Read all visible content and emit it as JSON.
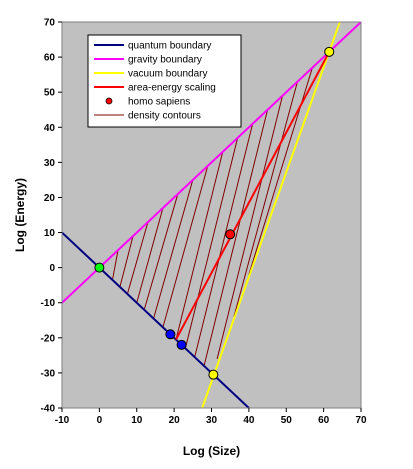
{
  "chart_data": {
    "type": "line",
    "xlabel": "Log (Size)",
    "ylabel": "Log (Energy)",
    "xlim": [
      -10,
      70
    ],
    "ylim": [
      -40,
      70
    ],
    "x_ticks": [
      -10,
      0,
      10,
      20,
      30,
      40,
      50,
      60,
      70
    ],
    "y_ticks": [
      -40,
      -30,
      -20,
      -10,
      0,
      10,
      20,
      30,
      40,
      50,
      60,
      70
    ],
    "grid": false,
    "plot_background": "#c0c0c0",
    "legend_position": "top-left",
    "series": [
      {
        "name": "quantum boundary",
        "kind": "line",
        "color": "#000080",
        "points": [
          [
            -10,
            10
          ],
          [
            42,
            -42
          ]
        ]
      },
      {
        "name": "gravity boundary",
        "kind": "line",
        "color": "#ff00ff",
        "points": [
          [
            -10,
            -10
          ],
          [
            70,
            70
          ]
        ]
      },
      {
        "name": "vacuum boundary",
        "kind": "line",
        "color": "#ffff00",
        "points": [
          [
            27.5,
            -40
          ],
          [
            65,
            72
          ]
        ]
      },
      {
        "name": "area-energy scaling",
        "kind": "line",
        "color": "#ff0000",
        "points": [
          [
            20.5,
            -20.5
          ],
          [
            61.5,
            61.5
          ]
        ]
      },
      {
        "name": "homo sapiens",
        "kind": "marker",
        "color": "#ff0000",
        "points": [
          [
            35,
            9.5
          ]
        ]
      },
      {
        "name": "density contours",
        "kind": "contours",
        "color": "#800000",
        "segments": [
          [
            [
              3.5,
              -3.5
            ],
            [
              5,
              5
            ]
          ],
          [
            [
              5.5,
              -5.5
            ],
            [
              9,
              9
            ]
          ],
          [
            [
              7.5,
              -7.5
            ],
            [
              13,
              13
            ]
          ],
          [
            [
              10,
              -10
            ],
            [
              17,
              17
            ]
          ],
          [
            [
              12,
              -12
            ],
            [
              21,
              21
            ]
          ],
          [
            [
              14.5,
              -14.5
            ],
            [
              25,
              25
            ]
          ],
          [
            [
              17,
              -17
            ],
            [
              29,
              29
            ]
          ],
          [
            [
              20.5,
              -20.5
            ],
            [
              33,
              33
            ]
          ],
          [
            [
              23,
              -23
            ],
            [
              37,
              37
            ]
          ],
          [
            [
              25.5,
              -25.5
            ],
            [
              41,
              41
            ]
          ],
          [
            [
              28,
              -28
            ],
            [
              45,
              45
            ]
          ],
          [
            [
              31.5,
              -26
            ],
            [
              49,
              49
            ]
          ],
          [
            [
              36,
              -14
            ],
            [
              53,
              53
            ]
          ],
          [
            [
              40,
              -2
            ],
            [
              57,
              57
            ]
          ]
        ]
      }
    ],
    "markers": [
      {
        "x": 0,
        "y": 0,
        "color": "#00ff00"
      },
      {
        "x": 19,
        "y": -19,
        "color": "#0000ff"
      },
      {
        "x": 22,
        "y": -22,
        "color": "#0000ff"
      },
      {
        "x": 30.5,
        "y": -30.5,
        "color": "#ffff00"
      },
      {
        "x": 35,
        "y": 9.5,
        "color": "#ff0000"
      },
      {
        "x": 61.5,
        "y": 61.5,
        "color": "#ffff00"
      }
    ],
    "legend": [
      {
        "label": "quantum boundary",
        "symbol": "line",
        "color": "#000080"
      },
      {
        "label": "gravity boundary",
        "symbol": "line",
        "color": "#ff00ff"
      },
      {
        "label": "vacuum boundary",
        "symbol": "line",
        "color": "#ffff00"
      },
      {
        "label": "area-energy scaling",
        "symbol": "line",
        "color": "#ff0000"
      },
      {
        "label": "homo sapiens",
        "symbol": "dot",
        "color": "#ff0000"
      },
      {
        "label": "density contours",
        "symbol": "thin-line",
        "color": "#800000"
      }
    ]
  }
}
